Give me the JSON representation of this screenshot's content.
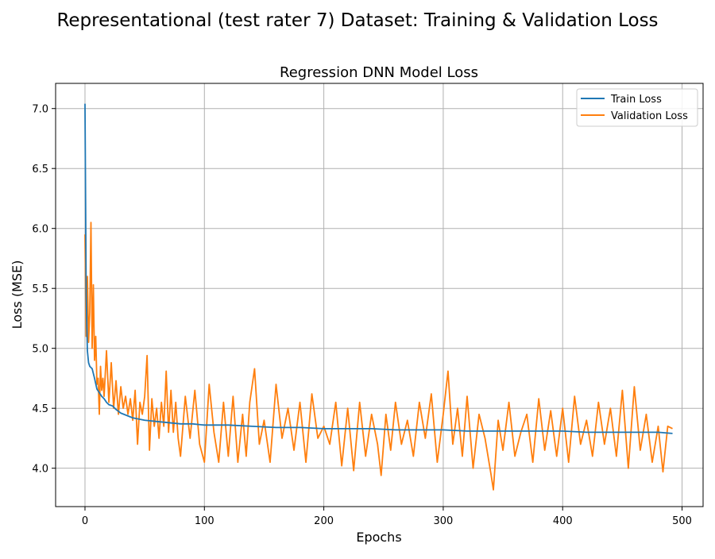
{
  "figure": {
    "suptitle": "Representational (test rater 7) Dataset: Training & Validation Loss"
  },
  "chart_data": {
    "type": "line",
    "title": "Regression DNN Model Loss",
    "xlabel": "Epochs",
    "ylabel": "Loss (MSE)",
    "xlim": [
      -24.6,
      517.6
    ],
    "ylim": [
      3.68,
      7.21
    ],
    "xticks": [
      0,
      100,
      200,
      300,
      400,
      500
    ],
    "yticks": [
      4.0,
      4.5,
      5.0,
      5.5,
      6.0,
      6.5,
      7.0
    ],
    "xtick_labels": [
      "0",
      "100",
      "200",
      "300",
      "400",
      "500"
    ],
    "ytick_labels": [
      "4.0",
      "4.5",
      "5.0",
      "5.5",
      "6.0",
      "6.5",
      "7.0"
    ],
    "grid": true,
    "legend_position": "top-right",
    "series": [
      {
        "name": "Train Loss",
        "color": "#1f77b4",
        "x": [
          0,
          1,
          2,
          3,
          4,
          5,
          6,
          8,
          10,
          12,
          14,
          16,
          18,
          20,
          23,
          26,
          30,
          35,
          40,
          45,
          50,
          60,
          70,
          80,
          90,
          100,
          120,
          140,
          160,
          180,
          200,
          220,
          240,
          260,
          280,
          300,
          320,
          340,
          360,
          380,
          400,
          420,
          440,
          460,
          480,
          492
        ],
        "y": [
          7.04,
          5.45,
          4.98,
          4.88,
          4.85,
          4.84,
          4.83,
          4.75,
          4.66,
          4.63,
          4.6,
          4.58,
          4.55,
          4.53,
          4.52,
          4.49,
          4.46,
          4.44,
          4.42,
          4.41,
          4.4,
          4.39,
          4.38,
          4.37,
          4.37,
          4.36,
          4.36,
          4.35,
          4.34,
          4.34,
          4.33,
          4.33,
          4.33,
          4.32,
          4.32,
          4.32,
          4.31,
          4.31,
          4.31,
          4.31,
          4.31,
          4.3,
          4.3,
          4.3,
          4.3,
          4.29
        ]
      },
      {
        "name": "Validation Loss",
        "color": "#ff7f0e",
        "x": [
          0,
          1,
          2,
          3,
          4,
          5,
          6,
          7,
          8,
          9,
          10,
          11,
          12,
          13,
          14,
          15,
          16,
          18,
          20,
          22,
          24,
          26,
          28,
          30,
          32,
          34,
          36,
          38,
          40,
          42,
          44,
          46,
          48,
          50,
          52,
          54,
          56,
          58,
          60,
          62,
          64,
          66,
          68,
          70,
          72,
          74,
          76,
          78,
          80,
          84,
          88,
          92,
          96,
          100,
          104,
          108,
          112,
          116,
          120,
          124,
          128,
          132,
          135,
          138,
          142,
          146,
          150,
          155,
          160,
          165,
          170,
          175,
          180,
          185,
          190,
          195,
          200,
          205,
          210,
          215,
          220,
          225,
          230,
          235,
          240,
          245,
          248,
          252,
          256,
          260,
          265,
          270,
          275,
          280,
          285,
          290,
          295,
          300,
          304,
          308,
          312,
          316,
          320,
          325,
          330,
          335,
          340,
          342,
          346,
          350,
          355,
          360,
          365,
          370,
          375,
          380,
          385,
          390,
          395,
          400,
          405,
          410,
          415,
          420,
          425,
          430,
          435,
          440,
          445,
          450,
          455,
          460,
          465,
          470,
          475,
          480,
          484,
          488,
          492
        ],
        "y": [
          5.95,
          5.1,
          5.6,
          5.05,
          5.3,
          6.05,
          5.0,
          5.53,
          4.9,
          5.1,
          4.7,
          4.75,
          4.45,
          4.85,
          4.65,
          4.75,
          4.6,
          4.98,
          4.55,
          4.88,
          4.5,
          4.73,
          4.45,
          4.68,
          4.5,
          4.6,
          4.45,
          4.58,
          4.4,
          4.65,
          4.2,
          4.55,
          4.45,
          4.6,
          4.94,
          4.15,
          4.58,
          4.35,
          4.5,
          4.25,
          4.55,
          4.35,
          4.81,
          4.3,
          4.65,
          4.3,
          4.55,
          4.25,
          4.1,
          4.6,
          4.25,
          4.65,
          4.2,
          4.05,
          4.7,
          4.3,
          4.05,
          4.55,
          4.1,
          4.6,
          4.05,
          4.45,
          4.1,
          4.55,
          4.83,
          4.2,
          4.4,
          4.05,
          4.7,
          4.25,
          4.5,
          4.15,
          4.55,
          4.05,
          4.62,
          4.25,
          4.35,
          4.2,
          4.55,
          4.02,
          4.5,
          3.98,
          4.55,
          4.1,
          4.45,
          4.2,
          3.94,
          4.45,
          4.15,
          4.55,
          4.2,
          4.4,
          4.1,
          4.55,
          4.25,
          4.62,
          4.05,
          4.45,
          4.81,
          4.2,
          4.5,
          4.1,
          4.6,
          4.0,
          4.45,
          4.25,
          3.95,
          3.82,
          4.4,
          4.15,
          4.55,
          4.1,
          4.3,
          4.45,
          4.05,
          4.58,
          4.15,
          4.48,
          4.1,
          4.5,
          4.05,
          4.6,
          4.2,
          4.4,
          4.1,
          4.55,
          4.2,
          4.5,
          4.1,
          4.65,
          4.0,
          4.68,
          4.15,
          4.45,
          4.05,
          4.35,
          3.97,
          4.35,
          4.33
        ]
      }
    ]
  }
}
